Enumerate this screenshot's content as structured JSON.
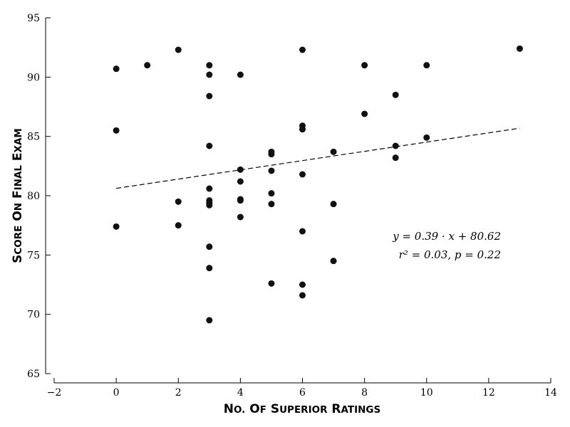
{
  "chart_data": {
    "type": "scatter",
    "xlabel": "No. of Superior Ratings",
    "ylabel": "Score on Final Exam",
    "xlim": [
      -2,
      14
    ],
    "ylim": [
      65,
      95
    ],
    "xticks": [
      -2,
      0,
      2,
      4,
      6,
      8,
      10,
      12,
      14
    ],
    "yticks": [
      65,
      70,
      75,
      80,
      85,
      90,
      95
    ],
    "x_tick_labels": [
      "−2",
      "0",
      "2",
      "4",
      "6",
      "8",
      "10",
      "12",
      "14"
    ],
    "y_tick_labels": [
      "65",
      "70",
      "75",
      "80",
      "85",
      "90",
      "95"
    ],
    "grid": false,
    "point_color": "#111111",
    "points": [
      {
        "x": 0,
        "y": 90.7
      },
      {
        "x": 0,
        "y": 85.5
      },
      {
        "x": 0,
        "y": 77.4
      },
      {
        "x": 1,
        "y": 91.0
      },
      {
        "x": 2,
        "y": 92.3
      },
      {
        "x": 2,
        "y": 79.5
      },
      {
        "x": 2,
        "y": 77.5
      },
      {
        "x": 3,
        "y": 91.0
      },
      {
        "x": 3,
        "y": 90.2
      },
      {
        "x": 3,
        "y": 88.4
      },
      {
        "x": 3,
        "y": 84.2
      },
      {
        "x": 3,
        "y": 80.6
      },
      {
        "x": 3,
        "y": 79.6
      },
      {
        "x": 3,
        "y": 79.4
      },
      {
        "x": 3,
        "y": 79.2
      },
      {
        "x": 3,
        "y": 75.7
      },
      {
        "x": 3,
        "y": 73.9
      },
      {
        "x": 3,
        "y": 69.5
      },
      {
        "x": 4,
        "y": 90.2
      },
      {
        "x": 4,
        "y": 82.2
      },
      {
        "x": 4,
        "y": 81.2
      },
      {
        "x": 4,
        "y": 79.7
      },
      {
        "x": 4,
        "y": 79.6
      },
      {
        "x": 4,
        "y": 78.2
      },
      {
        "x": 5,
        "y": 83.7
      },
      {
        "x": 5,
        "y": 83.5
      },
      {
        "x": 5,
        "y": 82.1
      },
      {
        "x": 5,
        "y": 80.2
      },
      {
        "x": 5,
        "y": 79.3
      },
      {
        "x": 5,
        "y": 72.6
      },
      {
        "x": 6,
        "y": 92.3
      },
      {
        "x": 6,
        "y": 85.9
      },
      {
        "x": 6,
        "y": 85.6
      },
      {
        "x": 6,
        "y": 81.8
      },
      {
        "x": 6,
        "y": 77.0
      },
      {
        "x": 6,
        "y": 72.5
      },
      {
        "x": 6,
        "y": 71.6
      },
      {
        "x": 7,
        "y": 83.7
      },
      {
        "x": 7,
        "y": 79.3
      },
      {
        "x": 7,
        "y": 74.5
      },
      {
        "x": 8,
        "y": 91.0
      },
      {
        "x": 8,
        "y": 86.9
      },
      {
        "x": 9,
        "y": 88.5
      },
      {
        "x": 9,
        "y": 84.2
      },
      {
        "x": 9,
        "y": 83.2
      },
      {
        "x": 10,
        "y": 91.0
      },
      {
        "x": 10,
        "y": 84.9
      },
      {
        "x": 13,
        "y": 92.4
      }
    ],
    "fit_line": {
      "slope": 0.39,
      "intercept": 80.62,
      "x_range": [
        0,
        13
      ],
      "style": "dashed"
    },
    "annotations": [
      "y = 0.39 · x + 80.62",
      "r² = 0.03, p = 0.22"
    ]
  }
}
